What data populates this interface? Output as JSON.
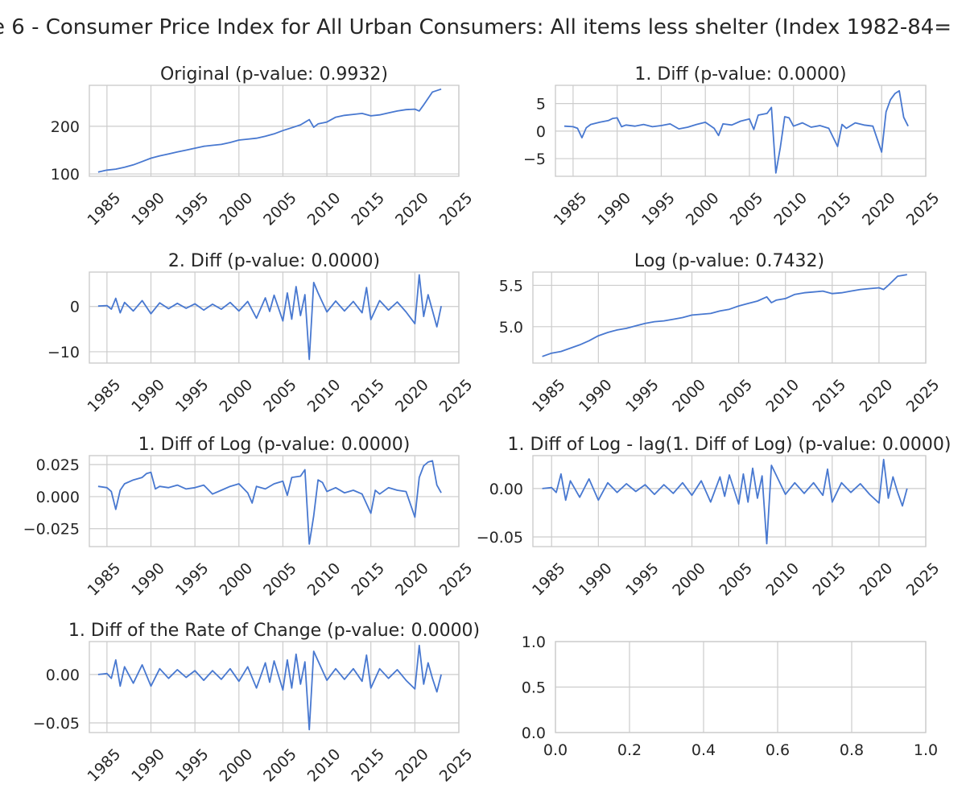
{
  "figure": {
    "suptitle": "e 6 - Consumer Price Index for All Urban Consumers: All items less shelter (Index 1982-84="
  },
  "chart_data": [
    {
      "type": "line",
      "title": "Original (p-value: 0.9932)",
      "xlim": [
        1983.0,
        2025.0
      ],
      "xticks": [
        "1985",
        "1990",
        "1995",
        "2000",
        "2005",
        "2010",
        "2015",
        "2020",
        "2025"
      ],
      "ylim": [
        95,
        286
      ],
      "yticks": [
        "100",
        "200"
      ],
      "series": [
        {
          "x": [
            1984,
            1985,
            1986,
            1987,
            1988,
            1989,
            1990,
            1991,
            1992,
            1993,
            1994,
            1995,
            1996,
            1997,
            1998,
            1999,
            2000,
            2001,
            2002,
            2003,
            2004,
            2005,
            2006,
            2007,
            2008,
            2008.5,
            2009,
            2010,
            2011,
            2012,
            2013,
            2014,
            2015,
            2016,
            2017,
            2018,
            2019,
            2020,
            2020.5,
            2021,
            2022,
            2023
          ],
          "values": [
            104,
            108,
            110,
            114,
            119,
            126,
            133,
            138,
            142,
            146,
            150,
            154,
            158,
            160,
            162,
            166,
            171,
            173,
            175,
            179,
            184,
            191,
            197,
            203,
            214,
            198,
            205,
            209,
            219,
            223,
            225,
            227,
            222,
            224,
            228,
            232,
            235,
            236,
            232,
            245,
            272,
            278
          ]
        }
      ]
    },
    {
      "type": "line",
      "title": "1. Diff (p-value: 0.0000)",
      "xlim": [
        1983.0,
        2025.0
      ],
      "xticks": [
        "1985",
        "1990",
        "1995",
        "2000",
        "2005",
        "2010",
        "2015",
        "2020",
        "2025"
      ],
      "ylim": [
        -8.2,
        8.3
      ],
      "yticks": [
        "5",
        "0",
        "−5"
      ],
      "series": [
        {
          "x": [
            1984,
            1985,
            1985.5,
            1986,
            1986.5,
            1987,
            1988,
            1989,
            1989.5,
            1990,
            1990.5,
            1991,
            1992,
            1993,
            1994,
            1995,
            1996,
            1997,
            1998,
            1999,
            2000,
            2001,
            2001.5,
            2002,
            2003,
            2004,
            2005,
            2005.5,
            2006,
            2007,
            2007.5,
            2008,
            2008.5,
            2009,
            2009.5,
            2010,
            2011,
            2012,
            2013,
            2014,
            2015,
            2015.5,
            2016,
            2017,
            2018,
            2019,
            2020,
            2020.5,
            2021,
            2021.5,
            2022,
            2022.5,
            2023
          ],
          "values": [
            0.9,
            0.8,
            0.5,
            -1.2,
            0.6,
            1.2,
            1.6,
            1.9,
            2.3,
            2.4,
            0.8,
            1.1,
            0.9,
            1.2,
            0.8,
            1.0,
            1.3,
            0.4,
            0.7,
            1.2,
            1.6,
            0.5,
            -0.8,
            1.3,
            1.1,
            1.8,
            2.2,
            0.3,
            2.9,
            3.2,
            4.3,
            -7.6,
            -3.0,
            2.6,
            2.4,
            0.9,
            1.5,
            0.7,
            1.0,
            0.5,
            -2.8,
            1.2,
            0.5,
            1.5,
            1.1,
            0.9,
            -3.8,
            3.5,
            5.7,
            6.8,
            7.3,
            2.5,
            0.9
          ]
        }
      ]
    },
    {
      "type": "line",
      "title": "2. Diff (p-value: 0.0000)",
      "xlim": [
        1983.0,
        2025.0
      ],
      "xticks": [
        "1985",
        "1990",
        "1995",
        "2000",
        "2005",
        "2010",
        "2015",
        "2020",
        "2025"
      ],
      "ylim": [
        -12.5,
        7.6
      ],
      "yticks": [
        "0",
        "−10"
      ],
      "series": [
        {
          "x": [
            1984,
            1985,
            1985.5,
            1986,
            1986.5,
            1987,
            1988,
            1989,
            1990,
            1991,
            1992,
            1993,
            1994,
            1995,
            1996,
            1997,
            1998,
            1999,
            2000,
            2001,
            2002,
            2003,
            2003.5,
            2004,
            2005,
            2005.5,
            2006,
            2006.5,
            2007,
            2007.5,
            2008,
            2008.5,
            2009,
            2010,
            2011,
            2012,
            2013,
            2014,
            2014.5,
            2015,
            2016,
            2017,
            2018,
            2019,
            2020,
            2020.5,
            2021,
            2021.5,
            2022,
            2022.5,
            2023
          ],
          "values": [
            0.1,
            0.2,
            -0.6,
            1.8,
            -1.4,
            0.9,
            -1.0,
            1.3,
            -1.6,
            0.8,
            -0.5,
            0.7,
            -0.4,
            0.6,
            -0.8,
            0.5,
            -0.6,
            0.9,
            -1.0,
            1.1,
            -2.6,
            1.9,
            -1.1,
            2.5,
            -3.2,
            3.0,
            -2.8,
            4.4,
            -2.0,
            2.6,
            -11.7,
            5.3,
            3.0,
            -1.2,
            1.2,
            -1.0,
            1.1,
            -1.4,
            4.2,
            -2.9,
            1.3,
            -0.8,
            1.0,
            -1.2,
            -3.8,
            7.0,
            -2.2,
            2.6,
            -0.9,
            -4.5,
            0.1
          ]
        }
      ]
    },
    {
      "type": "line",
      "title": "Log (p-value: 0.7432)",
      "xlim": [
        1983.0,
        2025.0
      ],
      "xticks": [
        "1985",
        "1990",
        "1995",
        "2000",
        "2005",
        "2010",
        "2015",
        "2020",
        "2025"
      ],
      "ylim": [
        4.56,
        5.66
      ],
      "yticks": [
        "5.5",
        "5.0"
      ],
      "series": [
        {
          "x": [
            1984,
            1985,
            1986,
            1987,
            1988,
            1989,
            1990,
            1991,
            1992,
            1993,
            1994,
            1995,
            1996,
            1997,
            1998,
            1999,
            2000,
            2001,
            2002,
            2003,
            2004,
            2005,
            2006,
            2007,
            2008,
            2008.5,
            2009,
            2010,
            2011,
            2012,
            2013,
            2014,
            2015,
            2016,
            2017,
            2018,
            2019,
            2020,
            2020.5,
            2021,
            2022,
            2023
          ],
          "values": [
            4.64,
            4.68,
            4.7,
            4.74,
            4.78,
            4.83,
            4.89,
            4.93,
            4.96,
            4.98,
            5.01,
            5.04,
            5.06,
            5.07,
            5.09,
            5.11,
            5.14,
            5.15,
            5.16,
            5.19,
            5.21,
            5.25,
            5.28,
            5.31,
            5.36,
            5.29,
            5.32,
            5.34,
            5.39,
            5.41,
            5.42,
            5.43,
            5.4,
            5.41,
            5.43,
            5.45,
            5.46,
            5.47,
            5.45,
            5.5,
            5.61,
            5.63
          ]
        }
      ]
    },
    {
      "type": "line",
      "title": "1. Diff of Log (p-value: 0.0000)",
      "xlim": [
        1983.0,
        2025.0
      ],
      "xticks": [
        "1985",
        "1990",
        "1995",
        "2000",
        "2005",
        "2010",
        "2015",
        "2020",
        "2025"
      ],
      "ylim": [
        -0.039,
        0.032
      ],
      "yticks": [
        "0.025",
        "0.000",
        "−0.025"
      ],
      "series": [
        {
          "x": [
            1984,
            1985,
            1985.5,
            1986,
            1986.5,
            1987,
            1988,
            1989,
            1989.5,
            1990,
            1990.5,
            1991,
            1992,
            1993,
            1994,
            1995,
            1996,
            1997,
            1998,
            1999,
            2000,
            2001,
            2001.5,
            2002,
            2003,
            2004,
            2005,
            2005.5,
            2006,
            2007,
            2007.5,
            2008,
            2008.5,
            2009,
            2009.5,
            2010,
            2011,
            2012,
            2013,
            2014,
            2015,
            2015.5,
            2016,
            2017,
            2018,
            2019,
            2020,
            2020.5,
            2021,
            2021.5,
            2022,
            2022.5,
            2023
          ],
          "values": [
            0.008,
            0.007,
            0.004,
            -0.01,
            0.005,
            0.01,
            0.013,
            0.015,
            0.018,
            0.019,
            0.006,
            0.008,
            0.007,
            0.009,
            0.006,
            0.007,
            0.009,
            0.002,
            0.005,
            0.008,
            0.01,
            0.003,
            -0.005,
            0.008,
            0.006,
            0.01,
            0.012,
            0.001,
            0.015,
            0.016,
            0.021,
            -0.037,
            -0.015,
            0.013,
            0.011,
            0.004,
            0.007,
            0.003,
            0.005,
            0.002,
            -0.013,
            0.005,
            0.002,
            0.007,
            0.005,
            0.004,
            -0.016,
            0.015,
            0.024,
            0.027,
            0.028,
            0.009,
            0.003
          ]
        }
      ]
    },
    {
      "type": "line",
      "title": "1. Diff of Log - lag(1. Diff of Log) (p-value: 0.0000)",
      "xlim": [
        1983.0,
        2025.0
      ],
      "xticks": [
        "1985",
        "1990",
        "1995",
        "2000",
        "2005",
        "2010",
        "2015",
        "2020",
        "2025"
      ],
      "ylim": [
        -0.06,
        0.034
      ],
      "yticks": [
        "0.00",
        "−0.05"
      ],
      "series": [
        {
          "x": [
            1984,
            1985,
            1985.5,
            1986,
            1986.5,
            1987,
            1988,
            1989,
            1990,
            1991,
            1992,
            1993,
            1994,
            1995,
            1996,
            1997,
            1998,
            1999,
            2000,
            2001,
            2002,
            2003,
            2003.5,
            2004,
            2005,
            2005.5,
            2006,
            2006.5,
            2007,
            2007.5,
            2008,
            2008.5,
            2009,
            2010,
            2011,
            2012,
            2013,
            2014,
            2014.5,
            2015,
            2016,
            2017,
            2018,
            2019,
            2020,
            2020.5,
            2021,
            2021.5,
            2022,
            2022.5,
            2023
          ],
          "values": [
            0.0,
            0.001,
            -0.004,
            0.015,
            -0.012,
            0.008,
            -0.009,
            0.01,
            -0.012,
            0.006,
            -0.004,
            0.005,
            -0.003,
            0.004,
            -0.006,
            0.004,
            -0.005,
            0.006,
            -0.007,
            0.008,
            -0.014,
            0.012,
            -0.008,
            0.014,
            -0.016,
            0.015,
            -0.014,
            0.021,
            -0.01,
            0.013,
            -0.057,
            0.024,
            0.014,
            -0.006,
            0.006,
            -0.005,
            0.006,
            -0.007,
            0.02,
            -0.014,
            0.006,
            -0.004,
            0.005,
            -0.006,
            -0.015,
            0.03,
            -0.01,
            0.012,
            -0.004,
            -0.018,
            0.0
          ]
        }
      ]
    },
    {
      "type": "line",
      "title": "1. Diff of the Rate of Change (p-value: 0.0000)",
      "xlim": [
        1983.0,
        2025.0
      ],
      "xticks": [
        "1985",
        "1990",
        "1995",
        "2000",
        "2005",
        "2010",
        "2015",
        "2020",
        "2025"
      ],
      "ylim": [
        -0.06,
        0.034
      ],
      "yticks": [
        "0.00",
        "−0.05"
      ],
      "series": [
        {
          "x": [
            1984,
            1985,
            1985.5,
            1986,
            1986.5,
            1987,
            1988,
            1989,
            1990,
            1991,
            1992,
            1993,
            1994,
            1995,
            1996,
            1997,
            1998,
            1999,
            2000,
            2001,
            2002,
            2003,
            2003.5,
            2004,
            2005,
            2005.5,
            2006,
            2006.5,
            2007,
            2007.5,
            2008,
            2008.5,
            2009,
            2010,
            2011,
            2012,
            2013,
            2014,
            2014.5,
            2015,
            2016,
            2017,
            2018,
            2019,
            2020,
            2020.5,
            2021,
            2021.5,
            2022,
            2022.5,
            2023
          ],
          "values": [
            0.0,
            0.001,
            -0.004,
            0.015,
            -0.012,
            0.008,
            -0.009,
            0.01,
            -0.012,
            0.006,
            -0.004,
            0.005,
            -0.003,
            0.004,
            -0.006,
            0.004,
            -0.005,
            0.006,
            -0.007,
            0.008,
            -0.014,
            0.012,
            -0.008,
            0.014,
            -0.016,
            0.015,
            -0.014,
            0.021,
            -0.01,
            0.013,
            -0.057,
            0.024,
            0.014,
            -0.006,
            0.006,
            -0.005,
            0.006,
            -0.007,
            0.02,
            -0.014,
            0.006,
            -0.004,
            0.005,
            -0.006,
            -0.015,
            0.03,
            -0.01,
            0.012,
            -0.004,
            -0.018,
            0.0
          ]
        }
      ]
    },
    {
      "type": "line",
      "title": "",
      "xlim": [
        0.0,
        1.0
      ],
      "xticks": [
        "0.0",
        "0.2",
        "0.4",
        "0.6",
        "0.8",
        "1.0"
      ],
      "ylim": [
        0.0,
        1.0
      ],
      "yticks": [
        "1.0",
        "0.5",
        "0.0"
      ],
      "series": []
    }
  ]
}
